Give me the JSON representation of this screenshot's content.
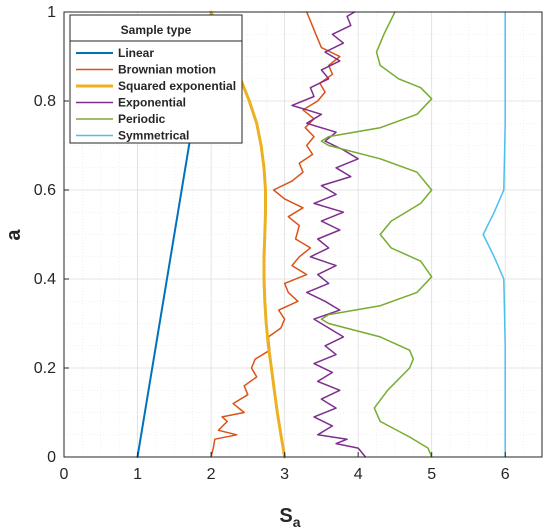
{
  "chart_data": {
    "type": "line",
    "xlabel_main": "S",
    "xlabel_sub": "a",
    "ylabel": "a",
    "xlim": [
      0,
      6.5
    ],
    "ylim": [
      0,
      1
    ],
    "xticks": [
      "0",
      "1",
      "2",
      "3",
      "4",
      "5",
      "6"
    ],
    "yticks": [
      "0",
      "0.2",
      "0.4",
      "0.6",
      "0.8",
      "1"
    ],
    "grid": true,
    "minor_grid": true,
    "legend_title": "Sample type",
    "legend_position": "top-left",
    "series": [
      {
        "name": "Linear",
        "color": "#0072BD",
        "width": 2,
        "points": [
          [
            1,
            0
          ],
          [
            2,
            1
          ]
        ]
      },
      {
        "name": "Brownian motion",
        "color": "#D95319",
        "width": 1.5,
        "points": [
          [
            2.0,
            0.0
          ],
          [
            2.03,
            0.02
          ],
          [
            2.05,
            0.04
          ],
          [
            2.35,
            0.05
          ],
          [
            2.1,
            0.06
          ],
          [
            2.22,
            0.08
          ],
          [
            2.15,
            0.09
          ],
          [
            2.45,
            0.1
          ],
          [
            2.3,
            0.12
          ],
          [
            2.5,
            0.14
          ],
          [
            2.45,
            0.16
          ],
          [
            2.62,
            0.18
          ],
          [
            2.55,
            0.2
          ],
          [
            2.6,
            0.22
          ],
          [
            2.8,
            0.24
          ],
          [
            2.78,
            0.27
          ],
          [
            2.95,
            0.29
          ],
          [
            3.0,
            0.31
          ],
          [
            2.92,
            0.33
          ],
          [
            3.18,
            0.35
          ],
          [
            3.05,
            0.37
          ],
          [
            3.0,
            0.39
          ],
          [
            3.3,
            0.41
          ],
          [
            3.1,
            0.43
          ],
          [
            3.2,
            0.45
          ],
          [
            3.35,
            0.47
          ],
          [
            3.15,
            0.49
          ],
          [
            3.2,
            0.52
          ],
          [
            3.05,
            0.54
          ],
          [
            3.25,
            0.56
          ],
          [
            3.0,
            0.58
          ],
          [
            2.85,
            0.6
          ],
          [
            3.1,
            0.62
          ],
          [
            3.25,
            0.64
          ],
          [
            3.2,
            0.66
          ],
          [
            3.38,
            0.68
          ],
          [
            3.3,
            0.7
          ],
          [
            3.4,
            0.72
          ],
          [
            3.28,
            0.74
          ],
          [
            3.4,
            0.76
          ],
          [
            3.25,
            0.78
          ],
          [
            3.45,
            0.8
          ],
          [
            3.55,
            0.82
          ],
          [
            3.48,
            0.84
          ],
          [
            3.65,
            0.86
          ],
          [
            3.6,
            0.88
          ],
          [
            3.75,
            0.9
          ],
          [
            3.5,
            0.92
          ],
          [
            3.45,
            0.94
          ],
          [
            3.4,
            0.96
          ],
          [
            3.35,
            0.98
          ],
          [
            3.3,
            1.0
          ]
        ]
      },
      {
        "name": "Squared exponential",
        "color": "#EDB120",
        "width": 3,
        "points": [
          [
            3.0,
            0.0
          ],
          [
            2.95,
            0.05
          ],
          [
            2.9,
            0.1
          ],
          [
            2.86,
            0.15
          ],
          [
            2.82,
            0.2
          ],
          [
            2.78,
            0.25
          ],
          [
            2.75,
            0.3
          ],
          [
            2.73,
            0.35
          ],
          [
            2.72,
            0.4
          ],
          [
            2.72,
            0.45
          ],
          [
            2.73,
            0.5
          ],
          [
            2.74,
            0.55
          ],
          [
            2.74,
            0.6
          ],
          [
            2.72,
            0.65
          ],
          [
            2.68,
            0.7
          ],
          [
            2.62,
            0.75
          ],
          [
            2.52,
            0.8
          ],
          [
            2.4,
            0.85
          ],
          [
            2.25,
            0.9
          ],
          [
            2.12,
            0.95
          ],
          [
            2.0,
            1.0
          ]
        ]
      },
      {
        "name": "Exponential",
        "color": "#7E2F8E",
        "width": 1.5,
        "points": [
          [
            4.1,
            0.0
          ],
          [
            4.0,
            0.02
          ],
          [
            3.7,
            0.03
          ],
          [
            3.85,
            0.04
          ],
          [
            3.45,
            0.05
          ],
          [
            3.65,
            0.07
          ],
          [
            3.4,
            0.09
          ],
          [
            3.7,
            0.11
          ],
          [
            3.5,
            0.13
          ],
          [
            3.75,
            0.15
          ],
          [
            3.45,
            0.17
          ],
          [
            3.65,
            0.19
          ],
          [
            3.4,
            0.21
          ],
          [
            3.7,
            0.23
          ],
          [
            3.55,
            0.25
          ],
          [
            3.8,
            0.27
          ],
          [
            3.6,
            0.29
          ],
          [
            3.4,
            0.31
          ],
          [
            3.75,
            0.33
          ],
          [
            3.55,
            0.35
          ],
          [
            3.3,
            0.37
          ],
          [
            3.6,
            0.39
          ],
          [
            3.45,
            0.41
          ],
          [
            3.7,
            0.43
          ],
          [
            3.35,
            0.45
          ],
          [
            3.6,
            0.47
          ],
          [
            3.45,
            0.49
          ],
          [
            3.75,
            0.51
          ],
          [
            3.5,
            0.53
          ],
          [
            3.8,
            0.55
          ],
          [
            3.4,
            0.57
          ],
          [
            3.7,
            0.59
          ],
          [
            3.5,
            0.61
          ],
          [
            3.9,
            0.63
          ],
          [
            3.7,
            0.65
          ],
          [
            4.0,
            0.67
          ],
          [
            3.8,
            0.69
          ],
          [
            3.55,
            0.71
          ],
          [
            3.7,
            0.73
          ],
          [
            3.3,
            0.75
          ],
          [
            3.5,
            0.77
          ],
          [
            3.1,
            0.79
          ],
          [
            3.4,
            0.81
          ],
          [
            3.35,
            0.83
          ],
          [
            3.6,
            0.85
          ],
          [
            3.5,
            0.87
          ],
          [
            3.75,
            0.89
          ],
          [
            3.55,
            0.91
          ],
          [
            3.8,
            0.93
          ],
          [
            3.65,
            0.95
          ],
          [
            3.9,
            0.97
          ],
          [
            3.85,
            0.99
          ],
          [
            3.95,
            1.0
          ]
        ]
      },
      {
        "name": "Periodic",
        "color": "#77AC30",
        "width": 1.5,
        "points": [
          [
            5.0,
            0.0
          ],
          [
            4.95,
            0.02
          ],
          [
            4.7,
            0.045
          ],
          [
            4.3,
            0.08
          ],
          [
            4.22,
            0.11
          ],
          [
            4.4,
            0.15
          ],
          [
            4.7,
            0.2
          ],
          [
            4.75,
            0.22
          ],
          [
            4.7,
            0.24
          ],
          [
            4.3,
            0.27
          ],
          [
            3.6,
            0.3
          ],
          [
            3.5,
            0.31
          ],
          [
            3.6,
            0.32
          ],
          [
            4.3,
            0.34
          ],
          [
            4.8,
            0.37
          ],
          [
            5.0,
            0.405
          ],
          [
            4.85,
            0.44
          ],
          [
            4.45,
            0.47
          ],
          [
            4.3,
            0.5
          ],
          [
            4.45,
            0.53
          ],
          [
            4.85,
            0.57
          ],
          [
            5.0,
            0.6
          ],
          [
            4.8,
            0.64
          ],
          [
            4.3,
            0.67
          ],
          [
            3.6,
            0.7
          ],
          [
            3.5,
            0.71
          ],
          [
            3.6,
            0.72
          ],
          [
            4.3,
            0.74
          ],
          [
            4.8,
            0.77
          ],
          [
            5.0,
            0.805
          ],
          [
            4.85,
            0.83
          ],
          [
            4.55,
            0.85
          ],
          [
            4.3,
            0.88
          ],
          [
            4.25,
            0.91
          ],
          [
            4.35,
            0.95
          ],
          [
            4.5,
            1.0
          ]
        ]
      },
      {
        "name": "Symmetrical",
        "color": "#4DBEEE",
        "width": 1.5,
        "points": [
          [
            6.0,
            0.0
          ],
          [
            6.0,
            0.25
          ],
          [
            5.98,
            0.4
          ],
          [
            5.85,
            0.45
          ],
          [
            5.7,
            0.5
          ],
          [
            5.85,
            0.55
          ],
          [
            5.98,
            0.6
          ],
          [
            6.0,
            0.75
          ],
          [
            6.0,
            1.0
          ]
        ]
      }
    ]
  }
}
